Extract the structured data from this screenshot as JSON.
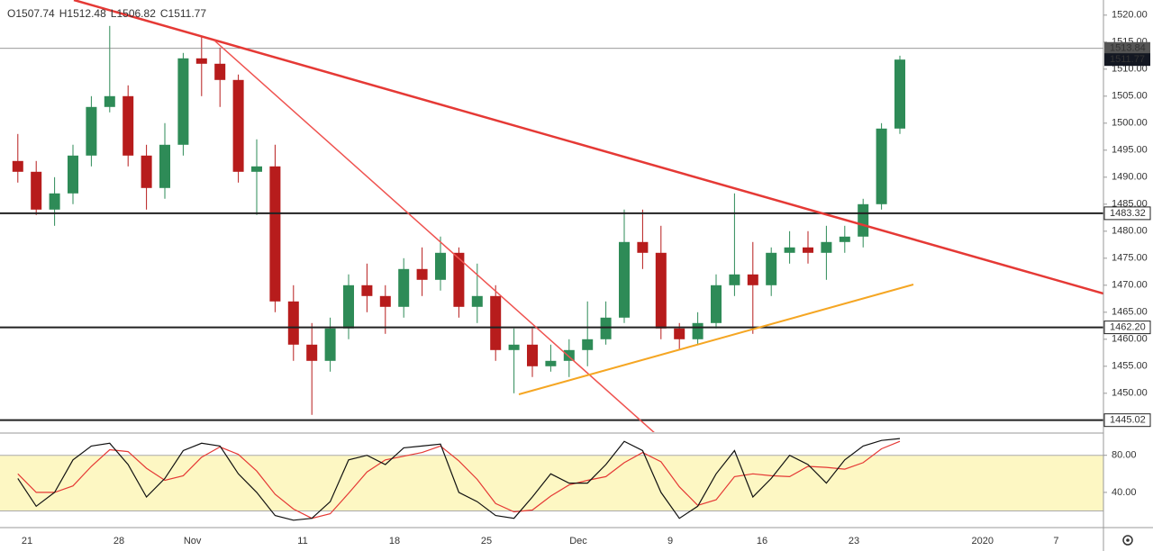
{
  "chart_data": [
    {
      "type": "candlestick",
      "ohlc_legend": [
        {
          "label": "O",
          "value": 1507.74
        },
        {
          "label": "H",
          "value": 1512.48
        },
        {
          "label": "L",
          "value": 1506.82
        },
        {
          "label": "C",
          "value": 1511.77
        }
      ],
      "categories": [
        null,
        "21",
        null,
        null,
        null,
        null,
        "28",
        null,
        null,
        null,
        "Nov",
        null,
        null,
        null,
        null,
        null,
        "11",
        null,
        null,
        null,
        null,
        "18",
        null,
        null,
        null,
        null,
        "25",
        null,
        null,
        null,
        null,
        "Dec",
        null,
        null,
        null,
        null,
        "9",
        null,
        null,
        null,
        null,
        "16",
        null,
        null,
        null,
        null,
        "23",
        null,
        null,
        null,
        null,
        null,
        null,
        "2020",
        null,
        null,
        null,
        "7",
        null,
        null,
        null
      ],
      "open": [
        1493,
        1491,
        1484,
        1487,
        1494,
        1503,
        1505,
        1494,
        1488,
        1496,
        1512,
        1511,
        1508,
        1491,
        1492,
        1467,
        1459,
        1456,
        1462,
        1470,
        1468,
        1466,
        1473,
        1471,
        1476,
        1466,
        1468,
        1458,
        1459,
        1455,
        1456,
        1458,
        1460,
        1464,
        1478,
        1476,
        1462,
        1460,
        1463,
        1470,
        1472,
        1470,
        1476,
        1477,
        1476,
        1478,
        1479,
        1485,
        1499,
        null,
        null,
        null,
        null,
        null,
        null,
        null,
        null,
        null,
        null,
        null,
        null
      ],
      "high": [
        1498,
        1493,
        1490,
        1496,
        1505,
        1518,
        1507,
        1496,
        1500,
        1513,
        1516,
        1514,
        1509,
        1497,
        1496,
        1470,
        1463,
        1464,
        1472,
        1474,
        1470,
        1475,
        1477,
        1479,
        1477,
        1474,
        1470,
        1462,
        1462,
        1459,
        1460,
        1467,
        1467,
        1484,
        1484,
        1481,
        1463,
        1465,
        1472,
        1487,
        1478,
        1477,
        1480,
        1480,
        1481,
        1481,
        1486,
        1500,
        1512.48,
        null,
        null,
        null,
        null,
        null,
        null,
        null,
        null,
        null,
        null,
        null,
        null
      ],
      "low": [
        1489,
        1483,
        1481,
        1485,
        1492,
        1502,
        1492,
        1484,
        1486,
        1494,
        1505,
        1503,
        1489,
        1483,
        1465,
        1456,
        1446,
        1454,
        1460,
        1465,
        1461,
        1464,
        1468,
        1469,
        1464,
        1463,
        1456,
        1450,
        1453,
        1454,
        1453,
        1455,
        1459,
        1463,
        1473,
        1460,
        1458,
        1459,
        1462,
        1468,
        1461,
        1468,
        1474,
        1474,
        1471,
        1476,
        1477,
        1484,
        1498,
        null,
        null,
        null,
        null,
        null,
        null,
        null,
        null,
        null,
        null,
        null,
        null
      ],
      "close": [
        1491,
        1484,
        1487,
        1494,
        1503,
        1505,
        1494,
        1488,
        1496,
        1512,
        1511,
        1508,
        1491,
        1492,
        1467,
        1459,
        1456,
        1462,
        1470,
        1468,
        1466,
        1473,
        1471,
        1476,
        1466,
        1468,
        1458,
        1459,
        1455,
        1456,
        1458,
        1460,
        1464,
        1478,
        1476,
        1462,
        1460,
        1463,
        1470,
        1472,
        1470,
        1476,
        1477,
        1476,
        1478,
        1479,
        1485,
        1499,
        1511.77,
        null,
        null,
        null,
        null,
        null,
        null,
        null,
        null,
        null,
        null,
        null,
        null
      ],
      "up_color": "#2e8b57",
      "down_color": "#b71c1c",
      "ylim": [
        1442.8,
        1522.8
      ],
      "yticks": [
        {
          "value": 1450,
          "label": "1450.00"
        },
        {
          "value": 1455,
          "label": "1455.00"
        },
        {
          "value": 1460,
          "label": "1460.00"
        },
        {
          "value": 1465,
          "label": "1465.00"
        },
        {
          "value": 1470,
          "label": "1470.00"
        },
        {
          "value": 1475,
          "label": "1475.00"
        },
        {
          "value": 1480,
          "label": "1480.00"
        },
        {
          "value": 1485,
          "label": "1485.00"
        },
        {
          "value": 1490,
          "label": "1490.00"
        },
        {
          "value": 1495,
          "label": "1495.00"
        },
        {
          "value": 1500,
          "label": "1500.00"
        },
        {
          "value": 1505,
          "label": "1505.00"
        },
        {
          "value": 1510,
          "label": "1510.00"
        },
        {
          "value": 1515,
          "label": "1515.00"
        },
        {
          "value": 1520,
          "label": "1520.00"
        }
      ],
      "levels": [
        1483.32,
        {
          "value": 1462.2,
          "label": "1462.20"
        },
        1445.02
      ],
      "price_marks": [
        {
          "value": 1513.84,
          "color": "#555555"
        },
        {
          "value": 1511.77,
          "color": "#131722"
        }
      ]
    },
    {
      "type": "line",
      "series": [
        {
          "color": "#111111",
          "values": [
            55,
            25,
            40,
            75,
            90,
            93,
            70,
            35,
            55,
            85,
            93,
            90,
            60,
            40,
            15,
            10,
            12,
            30,
            75,
            80,
            70,
            88,
            90,
            92,
            40,
            30,
            15,
            12,
            35,
            60,
            50,
            50,
            70,
            95,
            85,
            40,
            12,
            25,
            60,
            85,
            35,
            55,
            80,
            70,
            50,
            75,
            90,
            96,
            98,
            null,
            null,
            null,
            null,
            null,
            null,
            null,
            null,
            null,
            null,
            null,
            null
          ]
        },
        {
          "color": "#e53935",
          "values": [
            60,
            40,
            40,
            47,
            68,
            86,
            84,
            66,
            53,
            58,
            78,
            89,
            81,
            63,
            38,
            22,
            12,
            17,
            39,
            62,
            75,
            79,
            83,
            90,
            74,
            54,
            28,
            19,
            21,
            36,
            48,
            53,
            57,
            72,
            83,
            73,
            46,
            26,
            32,
            57,
            60,
            58,
            57,
            68,
            67,
            65,
            72,
            87,
            95,
            null,
            null,
            null,
            null,
            null,
            null,
            null,
            null,
            null,
            null,
            null,
            null
          ]
        }
      ],
      "ylim": [
        3,
        103
      ],
      "yticks": [
        {
          "value": 40,
          "label": "40.00"
        },
        {
          "value": 80,
          "label": "80.00"
        }
      ],
      "band": [
        20,
        80
      ],
      "band_color": "#fdf7c3"
    }
  ]
}
